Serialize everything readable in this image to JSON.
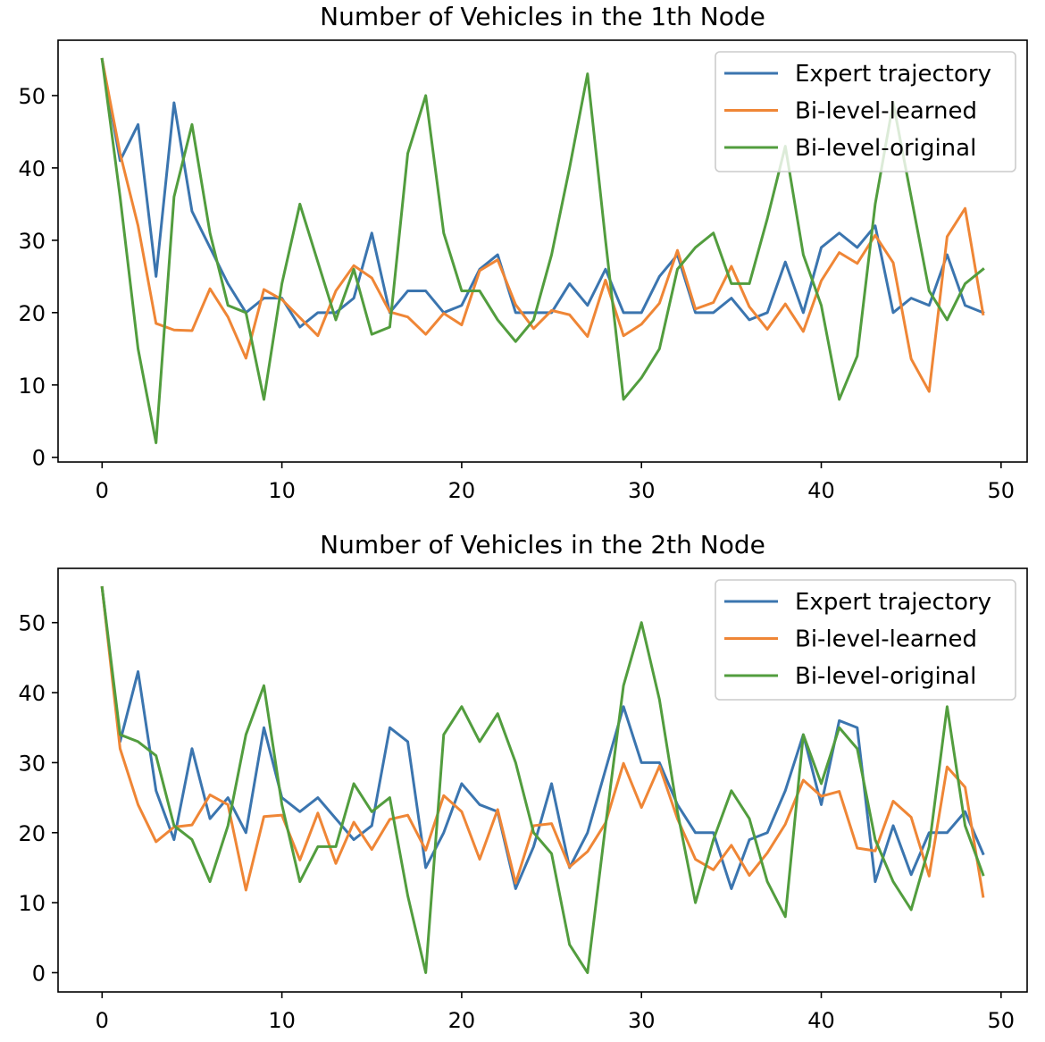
{
  "chart_data": [
    {
      "type": "line",
      "title": "Number of Vehicles in the 1th Node",
      "xlabel": "",
      "ylabel": "",
      "xlim": [
        -2.45,
        51.45
      ],
      "ylim": [
        -0.65,
        57.65
      ],
      "xticks": [
        0,
        10,
        20,
        30,
        40,
        50
      ],
      "yticks": [
        0,
        10,
        20,
        30,
        40,
        50
      ],
      "grid": false,
      "legend_position": "top-right",
      "x": [
        0,
        1,
        2,
        3,
        4,
        5,
        6,
        7,
        8,
        9,
        10,
        11,
        12,
        13,
        14,
        15,
        16,
        17,
        18,
        19,
        20,
        21,
        22,
        23,
        24,
        25,
        26,
        27,
        28,
        29,
        30,
        31,
        32,
        33,
        34,
        35,
        36,
        37,
        38,
        39,
        40,
        41,
        42,
        43,
        44,
        45,
        46,
        47,
        48,
        49
      ],
      "series": [
        {
          "name": "Expert trajectory",
          "color": "#3b75af",
          "values": [
            55,
            41,
            46,
            25,
            49,
            34,
            29,
            24,
            20,
            22,
            22,
            18,
            20,
            20,
            22,
            31,
            20,
            23,
            23,
            20,
            21,
            26,
            28,
            20,
            20,
            20,
            24,
            21,
            26,
            20,
            20,
            25,
            28,
            20,
            20,
            22,
            19,
            20,
            27,
            20,
            29,
            31,
            29,
            32,
            20,
            22,
            21,
            28,
            21,
            20
          ]
        },
        {
          "name": "Bi-level-learned",
          "color": "#ef8636",
          "values": [
            55,
            42,
            32,
            18.5,
            17.6,
            17.5,
            23.3,
            19.4,
            13.7,
            23.2,
            21.8,
            19.3,
            16.8,
            23,
            26.5,
            24.8,
            20.1,
            19.4,
            17,
            19.9,
            18.3,
            25.8,
            27.3,
            21.1,
            17.8,
            20.3,
            19.7,
            16.7,
            24.5,
            16.8,
            18.4,
            21.3,
            28.6,
            20.5,
            21.4,
            26.4,
            20.8,
            17.7,
            21.2,
            17.4,
            24.4,
            28.3,
            26.8,
            30.7,
            26.9,
            13.6,
            9.1,
            30.5,
            34.4,
            19.8
          ]
        },
        {
          "name": "Bi-level-original",
          "color": "#529d3e",
          "values": [
            55,
            36,
            15,
            2,
            36,
            46,
            31,
            21,
            20,
            8,
            24,
            35,
            27,
            19,
            26,
            17,
            18,
            42,
            50,
            31,
            23,
            23,
            19,
            16,
            19,
            28,
            40,
            53,
            30,
            8,
            11,
            15,
            26,
            29,
            31,
            24,
            24,
            33,
            43,
            28,
            21,
            8,
            14,
            35,
            49,
            36,
            23,
            19,
            24,
            26
          ]
        }
      ]
    },
    {
      "type": "line",
      "title": "Number of Vehicles in the 2th Node",
      "xlabel": "",
      "ylabel": "",
      "xlim": [
        -2.45,
        51.45
      ],
      "ylim": [
        -2.75,
        57.75
      ],
      "xticks": [
        0,
        10,
        20,
        30,
        40,
        50
      ],
      "yticks": [
        0,
        10,
        20,
        30,
        40,
        50
      ],
      "grid": false,
      "legend_position": "top-right",
      "x": [
        0,
        1,
        2,
        3,
        4,
        5,
        6,
        7,
        8,
        9,
        10,
        11,
        12,
        13,
        14,
        15,
        16,
        17,
        18,
        19,
        20,
        21,
        22,
        23,
        24,
        25,
        26,
        27,
        28,
        29,
        30,
        31,
        32,
        33,
        34,
        35,
        36,
        37,
        38,
        39,
        40,
        41,
        42,
        43,
        44,
        45,
        46,
        47,
        48,
        49
      ],
      "series": [
        {
          "name": "Expert trajectory",
          "color": "#3b75af",
          "values": [
            55,
            33,
            43,
            26,
            19,
            32,
            22,
            25,
            20,
            35,
            25,
            23,
            25,
            22,
            19,
            21,
            35,
            33,
            15,
            20,
            27,
            24,
            23,
            12,
            18,
            27,
            15,
            20,
            29,
            38,
            30,
            30,
            24,
            20,
            20,
            12,
            19,
            20,
            26,
            34,
            24,
            36,
            35,
            13,
            21,
            14,
            20,
            20,
            23,
            17
          ]
        },
        {
          "name": "Bi-level-learned",
          "color": "#ef8636",
          "values": [
            55,
            32,
            24,
            18.7,
            20.8,
            21.1,
            25.4,
            24,
            11.8,
            22.3,
            22.5,
            16.1,
            22.8,
            15.6,
            21.5,
            17.6,
            21.9,
            22.5,
            17.5,
            25.3,
            23,
            16.2,
            23.3,
            12.8,
            21,
            21.3,
            15.1,
            17.3,
            21.4,
            29.9,
            23.6,
            29.5,
            22,
            16.2,
            14.7,
            18.2,
            13.9,
            17.1,
            21.2,
            27.5,
            25.2,
            25.9,
            17.8,
            17.4,
            24.5,
            22.2,
            13.8,
            29.4,
            26.5,
            10.9
          ]
        },
        {
          "name": "Bi-level-original",
          "color": "#529d3e",
          "values": [
            55,
            34,
            33,
            31,
            21,
            19,
            13,
            21,
            34,
            41,
            24,
            13,
            18,
            18,
            27,
            23,
            25,
            11,
            0,
            34,
            38,
            33,
            37,
            30,
            20,
            17,
            4,
            0,
            21,
            41,
            50,
            39,
            23,
            10,
            19,
            26,
            22,
            13,
            8,
            34,
            27,
            35,
            32,
            19,
            13,
            9,
            18,
            38,
            21,
            14
          ]
        }
      ]
    }
  ]
}
